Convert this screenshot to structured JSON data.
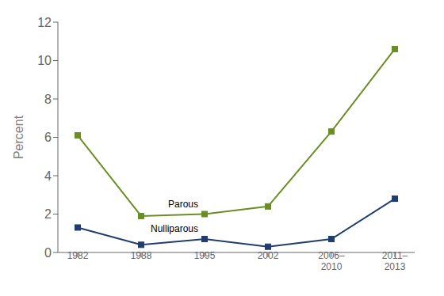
{
  "chart_data": {
    "type": "line",
    "categories": [
      "1982",
      "1988",
      "1995",
      "2002",
      "2006–\n2010",
      "2011–\n2013"
    ],
    "series": [
      {
        "name": "Parous",
        "color": "#6b8e23",
        "marker": "square",
        "values": [
          6.1,
          1.9,
          2.0,
          2.4,
          6.3,
          10.6
        ]
      },
      {
        "name": "Nulliparous",
        "color": "#1f3d6e",
        "marker": "square",
        "values": [
          1.3,
          0.4,
          0.7,
          0.3,
          0.7,
          2.8
        ]
      }
    ],
    "ylabel": "Percent",
    "ylim": [
      0,
      12
    ],
    "yticks": [
      0,
      2,
      4,
      6,
      8,
      10,
      12
    ],
    "grid": false
  }
}
